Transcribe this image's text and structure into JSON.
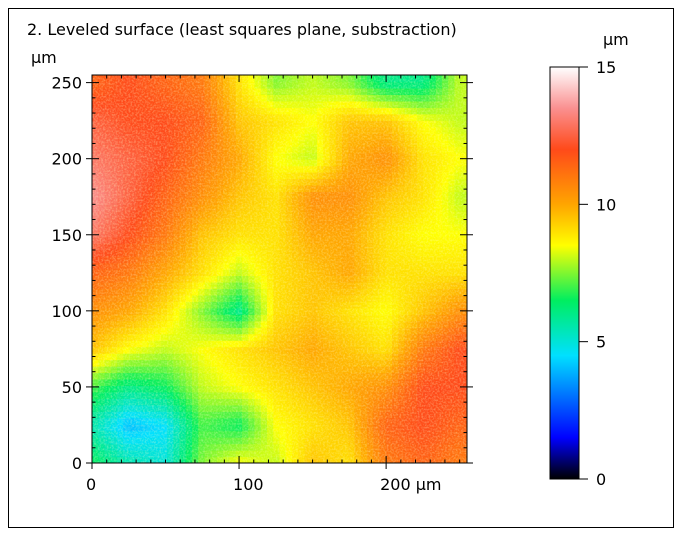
{
  "chart_data": {
    "type": "heatmap",
    "title": "2. Leveled surface (least squares plane, substraction)",
    "x_unit": "µm",
    "y_unit": "µm",
    "xlim": [
      0,
      255
    ],
    "ylim": [
      0,
      255
    ],
    "x_ticks": [
      {
        "value": 0,
        "label": "0"
      },
      {
        "value": 100,
        "label": "100"
      },
      {
        "value": 200,
        "label": "200 µm"
      }
    ],
    "y_ticks": [
      {
        "value": 0,
        "label": "0"
      },
      {
        "value": 50,
        "label": "50"
      },
      {
        "value": 100,
        "label": "100"
      },
      {
        "value": 150,
        "label": "150"
      },
      {
        "value": 200,
        "label": "200"
      },
      {
        "value": 250,
        "label": "250"
      }
    ],
    "colorbar": {
      "unit": "µm",
      "range": [
        0,
        15
      ],
      "ticks": [
        {
          "value": 0,
          "label": "0"
        },
        {
          "value": 5,
          "label": "5"
        },
        {
          "value": 10,
          "label": "10"
        },
        {
          "value": 15,
          "label": "15"
        }
      ],
      "colormap": [
        {
          "value": 0,
          "color": "#000000"
        },
        {
          "value": 1.5,
          "color": "#0000ff"
        },
        {
          "value": 4.5,
          "color": "#00e0ff"
        },
        {
          "value": 6.5,
          "color": "#00ee60"
        },
        {
          "value": 8.5,
          "color": "#ffff00"
        },
        {
          "value": 10,
          "color": "#ffa500"
        },
        {
          "value": 12,
          "color": "#ff4a1a"
        },
        {
          "value": 13.5,
          "color": "#fa9090"
        },
        {
          "value": 15,
          "color": "#ffffff"
        }
      ]
    },
    "surface_grid": {
      "x": [
        0,
        25,
        50,
        75,
        100,
        125,
        150,
        175,
        200,
        225,
        250
      ],
      "y": [
        0,
        25,
        50,
        75,
        100,
        125,
        150,
        175,
        200,
        225,
        250
      ],
      "z": [
        [
          6.5,
          5.5,
          5.0,
          7.5,
          8.5,
          8.0,
          9.5,
          9.0,
          11.0,
          11.5,
          11.0
        ],
        [
          5.5,
          4.0,
          4.5,
          7.0,
          6.5,
          8.5,
          9.0,
          9.5,
          11.5,
          12.0,
          11.5
        ],
        [
          7.0,
          6.0,
          6.5,
          8.0,
          8.5,
          9.0,
          9.5,
          10.0,
          10.5,
          12.0,
          12.0
        ],
        [
          9.5,
          8.5,
          8.0,
          8.5,
          9.0,
          9.5,
          10.0,
          9.5,
          9.0,
          11.0,
          12.0
        ],
        [
          10.5,
          10.0,
          9.0,
          7.5,
          6.0,
          9.0,
          9.5,
          9.0,
          8.5,
          9.5,
          10.5
        ],
        [
          11.5,
          11.0,
          10.0,
          9.0,
          8.0,
          9.0,
          9.5,
          10.0,
          9.0,
          9.0,
          9.0
        ],
        [
          13.0,
          12.0,
          11.0,
          9.5,
          9.0,
          9.0,
          10.0,
          10.0,
          9.0,
          8.5,
          8.5
        ],
        [
          13.5,
          12.5,
          11.5,
          10.5,
          9.5,
          9.0,
          10.5,
          10.5,
          9.5,
          9.0,
          8.0
        ],
        [
          13.0,
          12.5,
          12.0,
          11.0,
          10.0,
          8.5,
          8.0,
          10.0,
          10.5,
          9.0,
          8.5
        ],
        [
          12.5,
          12.0,
          12.0,
          11.5,
          9.5,
          9.0,
          8.5,
          9.5,
          9.5,
          8.5,
          8.0
        ],
        [
          11.5,
          12.0,
          11.5,
          11.0,
          9.0,
          7.5,
          8.0,
          7.5,
          6.0,
          6.0,
          8.0
        ]
      ]
    }
  }
}
